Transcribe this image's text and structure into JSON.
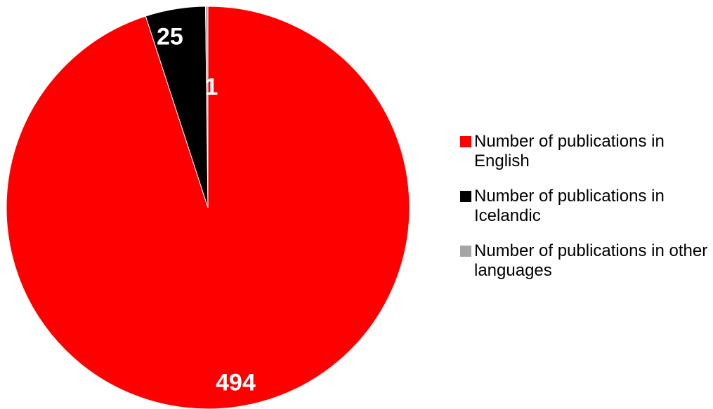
{
  "chart_data": {
    "type": "pie",
    "labels": [
      "Number of publications in English",
      "Number of publications in Icelandic",
      "Number of publications in other languages"
    ],
    "values": [
      494,
      25,
      1
    ],
    "colors": [
      "#ff0000",
      "#000000",
      "#a6a6a6"
    ],
    "data_labels": [
      "494",
      "25",
      "1"
    ],
    "legend": "right",
    "start_angle": "12 o'clock, clockwise"
  }
}
